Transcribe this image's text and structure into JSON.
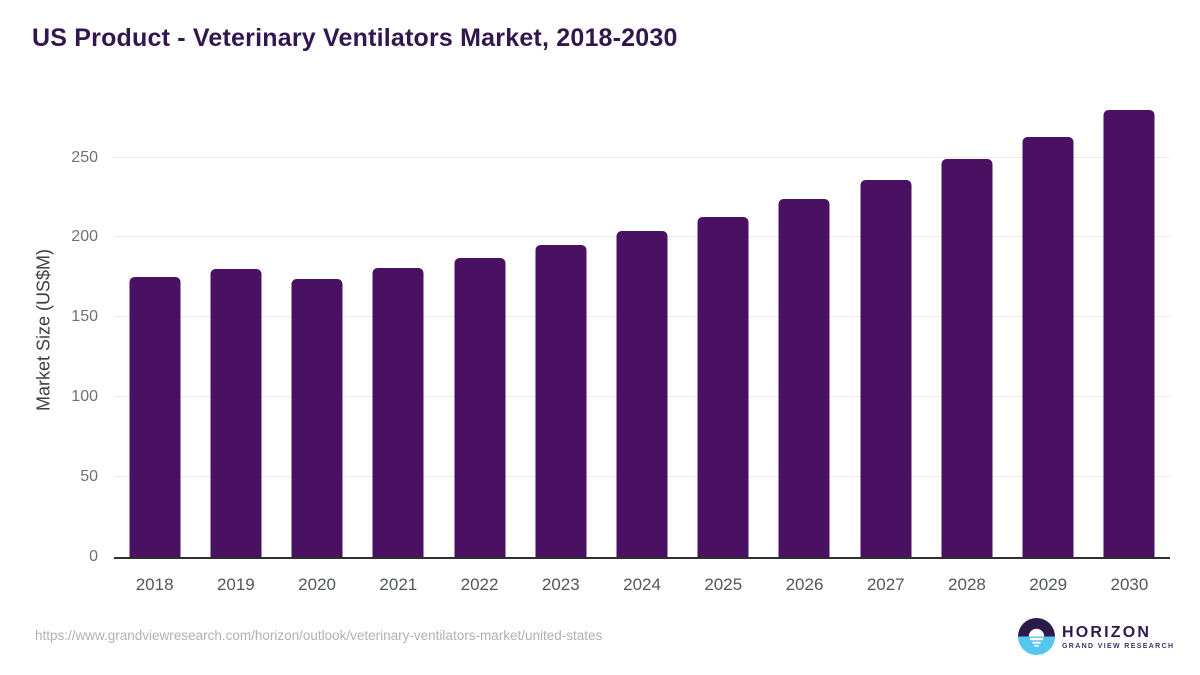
{
  "header": {
    "title": "US Product - Veterinary Ventilators Market, 2018-2030"
  },
  "chart_data": {
    "type": "bar",
    "title": "US Product - Veterinary Ventilators Market, 2018-2030",
    "categories": [
      "2018",
      "2019",
      "2020",
      "2021",
      "2022",
      "2023",
      "2024",
      "2025",
      "2026",
      "2027",
      "2028",
      "2029",
      "2030"
    ],
    "values": [
      175,
      180,
      174,
      181,
      187,
      195,
      204,
      213,
      224,
      236,
      249,
      263,
      280
    ],
    "xlabel": "",
    "ylabel": "Market Size (US$M)",
    "ylim": [
      0,
      287
    ],
    "yticks": [
      0,
      50,
      100,
      150,
      200,
      250
    ],
    "grid": "horizontal-light",
    "legend": "none",
    "bar_color": "#4a1163"
  },
  "footer": {
    "source_url": "https://www.grandviewresearch.com/horizon/outlook/veterinary-ventilators-market/united-states",
    "logo": {
      "name": "HORIZON",
      "subtitle": "GRAND VIEW RESEARCH"
    }
  },
  "colors": {
    "bar": "#4a1163",
    "title_text": "#32164e",
    "axis_line": "#2f2f2f",
    "gridline": "#e8e8e8",
    "tick_text": "#707070",
    "x_label_text": "#54575a",
    "url_text": "#b1b1b1",
    "logo_dark": "#2d1a4a",
    "logo_blue": "#56c5f0"
  }
}
